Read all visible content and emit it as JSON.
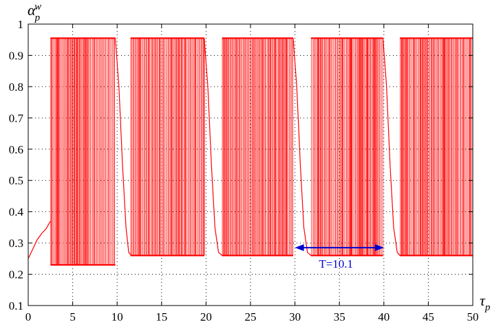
{
  "chart_data": {
    "type": "scatter",
    "title": "",
    "xlabel_main": "τ",
    "xlabel_sub": "p",
    "ylabel_main": "α",
    "ylabel_sub": "p",
    "ylabel_sup": "w",
    "xlim": [
      0,
      50
    ],
    "ylim": [
      0.1,
      1.0
    ],
    "x_ticks": [
      "0",
      "5",
      "10",
      "15",
      "20",
      "25",
      "30",
      "35",
      "40",
      "45",
      "50"
    ],
    "y_ticks": [
      "0.1",
      "0.2",
      "0.3",
      "0.4",
      "0.5",
      "0.6",
      "0.7",
      "0.8",
      "0.9",
      "1"
    ],
    "grid": true,
    "series_color": "#ff0000",
    "annotation_color": "#0000cc",
    "chaotic_bands": [
      {
        "x_start": 2.5,
        "x_end": 9.8,
        "y_min": 0.23,
        "y_max": 0.955
      },
      {
        "x_start": 11.5,
        "x_end": 19.8,
        "y_min": 0.26,
        "y_max": 0.955
      },
      {
        "x_start": 21.8,
        "x_end": 29.8,
        "y_min": 0.26,
        "y_max": 0.955
      },
      {
        "x_start": 31.8,
        "x_end": 39.9,
        "y_min": 0.26,
        "y_max": 0.955
      },
      {
        "x_start": 41.8,
        "x_end": 50,
        "y_min": 0.26,
        "y_max": 0.955
      }
    ],
    "transient_curve": [
      [
        0,
        0.25
      ],
      [
        0.5,
        0.28
      ],
      [
        1,
        0.31
      ],
      [
        1.5,
        0.33
      ],
      [
        2,
        0.345
      ],
      [
        2.5,
        0.37
      ]
    ],
    "decay_curves": [
      [
        [
          9.8,
          0.955
        ],
        [
          10.2,
          0.8
        ],
        [
          10.6,
          0.55
        ],
        [
          11.0,
          0.35
        ],
        [
          11.3,
          0.27
        ],
        [
          11.6,
          0.26
        ]
      ],
      [
        [
          19.8,
          0.955
        ],
        [
          20.2,
          0.8
        ],
        [
          20.6,
          0.55
        ],
        [
          21.0,
          0.35
        ],
        [
          21.4,
          0.27
        ],
        [
          21.8,
          0.26
        ]
      ],
      [
        [
          29.8,
          0.955
        ],
        [
          30.2,
          0.8
        ],
        [
          30.6,
          0.55
        ],
        [
          31.0,
          0.35
        ],
        [
          31.4,
          0.27
        ],
        [
          31.8,
          0.26
        ]
      ],
      [
        [
          39.9,
          0.955
        ],
        [
          40.3,
          0.8
        ],
        [
          40.7,
          0.55
        ],
        [
          41.1,
          0.35
        ],
        [
          41.5,
          0.27
        ],
        [
          41.8,
          0.26
        ]
      ]
    ],
    "period_arrow": {
      "x_start": 30,
      "x_end": 40,
      "y": 0.285,
      "label": "T=10.1"
    }
  }
}
